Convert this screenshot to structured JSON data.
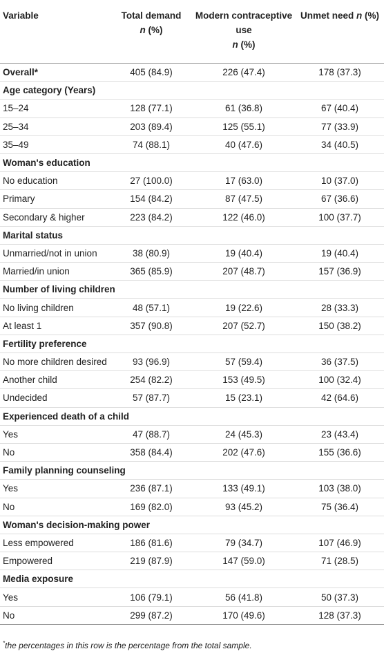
{
  "table": {
    "header": [
      [
        "Variable"
      ],
      [
        "Total demand",
        "n",
        "(%)"
      ],
      [
        "Modern contraceptive use",
        "n",
        "(%)"
      ],
      [
        "Unmet need",
        "n",
        "(%)"
      ]
    ],
    "rows": [
      {
        "label": "Overall*",
        "cells": [
          "405 (84.9)",
          "226 (47.4)",
          "178 (37.3)"
        ]
      },
      {
        "label": "Age category (Years)"
      },
      {
        "label": "15–24",
        "cells": [
          "128 (77.1)",
          "61 (36.8)",
          "67 (40.4)"
        ]
      },
      {
        "label": "25–34",
        "cells": [
          "203 (89.4)",
          "125 (55.1)",
          "77 (33.9)"
        ]
      },
      {
        "label": "35–49",
        "cells": [
          "74 (88.1)",
          "40 (47.6)",
          "34 (40.5)"
        ]
      },
      {
        "label": "Woman's education"
      },
      {
        "label": "No education",
        "cells": [
          "27 (100.0)",
          "17 (63.0)",
          "10 (37.0)"
        ]
      },
      {
        "label": "Primary",
        "cells": [
          "154 (84.2)",
          "87 (47.5)",
          "67 (36.6)"
        ]
      },
      {
        "label": "Secondary & higher",
        "cells": [
          "223 (84.2)",
          "122 (46.0)",
          "100 (37.7)"
        ]
      },
      {
        "label": "Marital status"
      },
      {
        "label": "Unmarried/not in union",
        "cells": [
          "38 (80.9)",
          "19 (40.4)",
          "19 (40.4)"
        ]
      },
      {
        "label": "Married/in union",
        "cells": [
          "365 (85.9)",
          "207 (48.7)",
          "157 (36.9)"
        ]
      },
      {
        "label": "Number of living children"
      },
      {
        "label": "No living children",
        "cells": [
          "48 (57.1)",
          "19 (22.6)",
          "28 (33.3)"
        ]
      },
      {
        "label": "At least 1",
        "cells": [
          "357 (90.8)",
          "207 (52.7)",
          "150 (38.2)"
        ]
      },
      {
        "label": "Fertility preference"
      },
      {
        "label": "No more children desired",
        "cells": [
          "93 (96.9)",
          "57 (59.4)",
          "36 (37.5)"
        ]
      },
      {
        "label": "Another child",
        "cells": [
          "254 (82.2)",
          "153 (49.5)",
          "100 (32.4)"
        ]
      },
      {
        "label": "Undecided",
        "cells": [
          "57 (87.7)",
          "15 (23.1)",
          "42 (64.6)"
        ]
      },
      {
        "label": "Experienced death of a child"
      },
      {
        "label": "Yes",
        "cells": [
          "47 (88.7)",
          "24 (45.3)",
          "23 (43.4)"
        ]
      },
      {
        "label": "No",
        "cells": [
          "358 (84.4)",
          "202 (47.6)",
          "155 (36.6)"
        ]
      },
      {
        "label": "Family planning counseling"
      },
      {
        "label": "Yes",
        "cells": [
          "236 (87.1)",
          "133 (49.1)",
          "103 (38.0)"
        ]
      },
      {
        "label": "No",
        "cells": [
          "169 (82.0)",
          "93 (45.2)",
          "75 (36.4)"
        ]
      },
      {
        "label": "Woman's decision-making power"
      },
      {
        "label": "Less empowered",
        "cells": [
          "186 (81.6)",
          "79 (34.7)",
          "107 (46.9)"
        ]
      },
      {
        "label": "Empowered",
        "cells": [
          "219 (87.9)",
          "147 (59.0)",
          "71 (28.5)"
        ]
      },
      {
        "label": "Media exposure"
      },
      {
        "label": "Yes",
        "cells": [
          "106 (79.1)",
          "56 (41.8)",
          "50 (37.3)"
        ]
      },
      {
        "label": "No",
        "cells": [
          "299 (87.2)",
          "170 (49.6)",
          "128 (37.3)"
        ]
      }
    ]
  },
  "footnote": {
    "marker": "*",
    "text": "the percentages in this row is the percentage from the total sample."
  }
}
